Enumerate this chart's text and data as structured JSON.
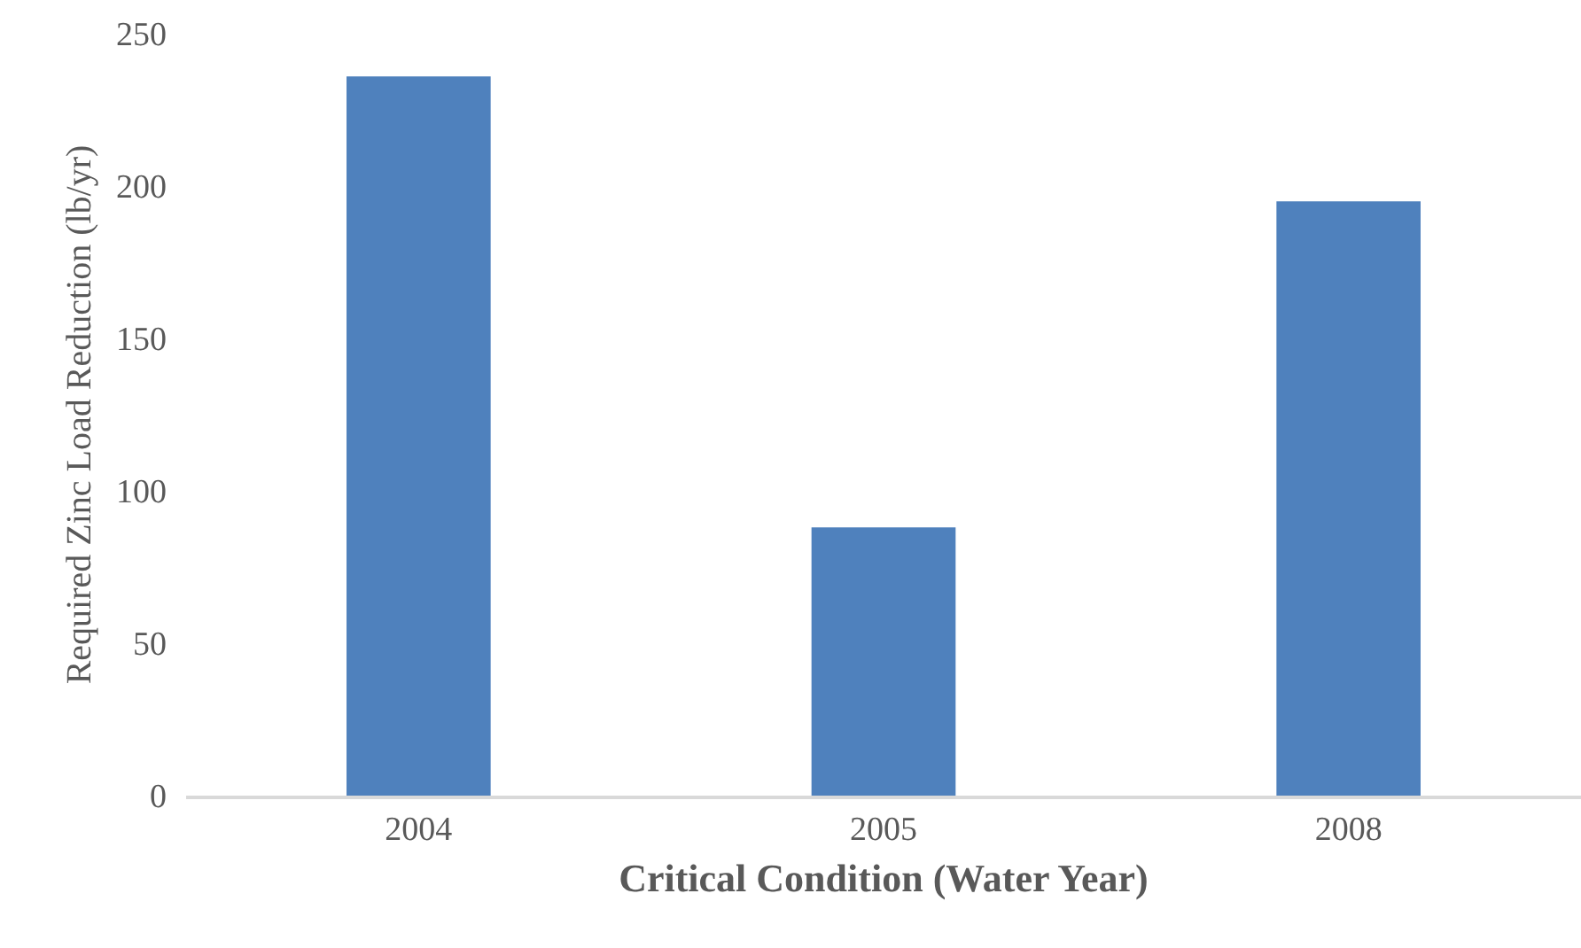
{
  "chart_data": {
    "type": "bar",
    "xlabel": "Critical Condition (Water Year)",
    "ylabel": "Required Zinc Load Reduction (lb/yr)",
    "categories": [
      "2004",
      "2005",
      "2008"
    ],
    "values": [
      236,
      88,
      195
    ],
    "color": "#4f81bd",
    "ylim": [
      0,
      250
    ],
    "yticks": [
      0,
      50,
      100,
      150,
      200,
      250
    ]
  }
}
